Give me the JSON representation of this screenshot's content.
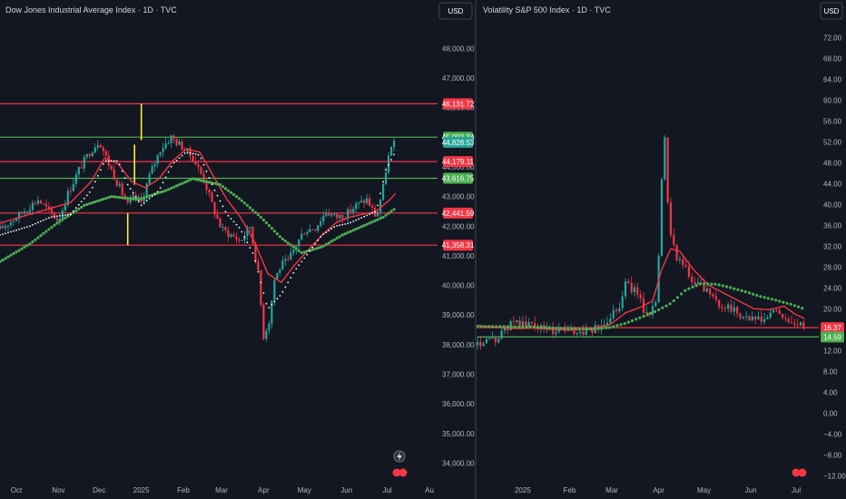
{
  "chart_data": [
    {
      "type": "candlestick",
      "title": "Dow Jones Industrial Average Index · 1D · TVC",
      "currency_button": "USD",
      "ylim": [
        33400,
        48900
      ],
      "yticks": [
        48000,
        47000,
        46000,
        45000,
        44000,
        43000,
        42000,
        41000,
        40000,
        39000,
        38000,
        37000,
        36000,
        35000,
        34000
      ],
      "ytick_labels": [
        "48,000.00",
        "47,000.00",
        "46,000.00",
        "45,000.00",
        "44,000.00",
        "43,000.00",
        "42,000.00",
        "41,000.00",
        "40,000.00",
        "39,000.00",
        "38,000.00",
        "37,000.00",
        "36,000.00",
        "35,000.00",
        "34,000.00"
      ],
      "xlabels": [
        "Oct",
        "Nov",
        "Dec",
        "2025",
        "Feb",
        "Mar",
        "Apr",
        "May",
        "Jun",
        "Jul",
        "Au"
      ],
      "xlabel_days": [
        0,
        31,
        61,
        92,
        123,
        151,
        182,
        212,
        243,
        273,
        304
      ],
      "day_range": [
        -12,
        310
      ],
      "levels": [
        {
          "label": "46,131.72",
          "value": 46131.72,
          "color": "#f23645"
        },
        {
          "label": "45,003.34",
          "value": 45003.34,
          "color": "#4caf50"
        },
        {
          "label": "44,179.11",
          "value": 44179.11,
          "color": "#f23645"
        },
        {
          "label": "43,616.75",
          "value": 43616.75,
          "color": "#4caf50"
        },
        {
          "label": "42,441.59",
          "value": 42441.59,
          "color": "#f23645"
        },
        {
          "label": "41,358.31",
          "value": 41358.31,
          "color": "#f23645"
        }
      ],
      "last_price": {
        "label": "44,828.53",
        "value": 44828.53,
        "color": "#26a69a"
      },
      "vertical_markers": [
        {
          "day": 92,
          "from": 44900,
          "to": 46131.72
        },
        {
          "day": 87,
          "from": 43400,
          "to": 44750
        },
        {
          "day": 82,
          "from": 41358.31,
          "to": 42441.59
        }
      ],
      "series": [
        {
          "name": "close",
          "kind": "candles",
          "days": [
            -12,
            0,
            8,
            16,
            24,
            31,
            38,
            46,
            54,
            61,
            68,
            75,
            82,
            87,
            92,
            98,
            106,
            114,
            123,
            130,
            138,
            145,
            151,
            158,
            165,
            172,
            178,
            182,
            186,
            190,
            195,
            200,
            205,
            212,
            220,
            228,
            235,
            243,
            250,
            258,
            265,
            270,
            273,
            276,
            279
          ],
          "values": [
            41900,
            42300,
            42600,
            42900,
            42500,
            42200,
            43100,
            43900,
            44500,
            44900,
            44100,
            43400,
            42700,
            43000,
            42800,
            43700,
            44600,
            45000,
            44650,
            44300,
            43600,
            42600,
            41900,
            41700,
            41500,
            42000,
            40400,
            38300,
            38800,
            40200,
            40700,
            40800,
            41300,
            41850,
            41950,
            42500,
            42300,
            42400,
            42700,
            42900,
            42300,
            43300,
            44200,
            44600,
            44828
          ]
        },
        {
          "name": "ema-short",
          "kind": "line",
          "color": "#f23645",
          "days": [
            -12,
            10,
            25,
            40,
            55,
            65,
            75,
            85,
            95,
            105,
            115,
            125,
            135,
            145,
            155,
            165,
            175,
            185,
            195,
            205,
            215,
            225,
            235,
            245,
            255,
            265,
            275,
            279
          ],
          "values": [
            42100,
            42400,
            42600,
            42800,
            43500,
            44300,
            44100,
            43500,
            43300,
            43600,
            44200,
            44600,
            44500,
            43700,
            42900,
            42300,
            41500,
            40400,
            40100,
            40700,
            41200,
            41700,
            42100,
            42300,
            42400,
            42500,
            42900,
            43100
          ]
        },
        {
          "name": "ma-long",
          "kind": "dots",
          "color": "#4caf50",
          "days": [
            -12,
            10,
            30,
            50,
            70,
            90,
            110,
            130,
            150,
            165,
            180,
            195,
            210,
            225,
            240,
            255,
            270,
            279
          ],
          "values": [
            40800,
            41400,
            42100,
            42700,
            43000,
            42900,
            43200,
            43600,
            43400,
            42900,
            42300,
            41600,
            41100,
            41300,
            41700,
            42000,
            42300,
            42600
          ]
        },
        {
          "name": "ma-short",
          "kind": "dots",
          "color": "#ffffff",
          "days": [
            -12,
            10,
            25,
            40,
            55,
            65,
            75,
            82,
            92,
            105,
            115,
            125,
            135,
            145,
            155,
            165,
            175,
            185,
            195,
            205,
            215,
            225,
            235,
            245,
            255,
            265,
            272,
            279
          ],
          "values": [
            41700,
            42000,
            42300,
            42400,
            43200,
            44200,
            44200,
            43400,
            42700,
            43200,
            44100,
            44500,
            44400,
            43300,
            42400,
            41900,
            41000,
            39200,
            39700,
            40500,
            41100,
            41700,
            42000,
            42100,
            42300,
            42500,
            43900,
            44500
          ]
        }
      ]
    },
    {
      "type": "candlestick",
      "title": "Volatility S&P 500 Index · 1D · TVC",
      "currency_button": "USD",
      "ylim": [
        -13,
        75
      ],
      "yticks": [
        72,
        68,
        64,
        60,
        56,
        52,
        48,
        44,
        40,
        36,
        32,
        28,
        24,
        20,
        16,
        12,
        8,
        4,
        0,
        -4,
        -8,
        -12
      ],
      "ytick_labels": [
        "72.00",
        "68.00",
        "64.00",
        "60.00",
        "56.00",
        "52.00",
        "48.00",
        "44.00",
        "40.00",
        "36.00",
        "32.00",
        "28.00",
        "24.00",
        "20.00",
        "16.00",
        "12.00",
        "8.00",
        "4.00",
        "0.00",
        "−4.00",
        "−8.00",
        "−12.00"
      ],
      "xlabels": [
        "2025",
        "Feb",
        "Mar",
        "Apr",
        "May",
        "Jun",
        "Jul"
      ],
      "xlabel_days": [
        92,
        123,
        151,
        182,
        212,
        243,
        273
      ],
      "day_range": [
        62,
        288
      ],
      "levels": [
        {
          "label": "16.37",
          "value": 16.37,
          "color": "#f23645"
        },
        {
          "label": "14.59",
          "value": 14.59,
          "color": "#4caf50"
        }
      ],
      "series": [
        {
          "name": "close",
          "kind": "candles",
          "days": [
            62,
            68,
            75,
            82,
            88,
            92,
            98,
            105,
            112,
            118,
            123,
            130,
            138,
            145,
            151,
            156,
            160,
            166,
            172,
            176,
            180,
            182,
            184,
            186,
            188,
            190,
            194,
            198,
            204,
            212,
            220,
            228,
            235,
            243,
            250,
            258,
            265,
            270,
            274,
            278
          ],
          "values": [
            13.0,
            13.5,
            14.2,
            16.5,
            18.0,
            16.8,
            17.0,
            16.2,
            15.8,
            16.1,
            15.5,
            15.6,
            15.9,
            16.4,
            19.5,
            20.5,
            25.0,
            23.5,
            20.0,
            19.0,
            22.0,
            30.0,
            45.0,
            52.0,
            40.0,
            35.0,
            30.0,
            28.5,
            25.0,
            24.0,
            21.0,
            20.5,
            19.0,
            18.0,
            17.5,
            19.5,
            18.5,
            17.0,
            16.8,
            16.4
          ]
        },
        {
          "name": "ema-short",
          "kind": "line",
          "color": "#f23645",
          "days": [
            62,
            75,
            88,
            100,
            112,
            125,
            138,
            150,
            160,
            170,
            178,
            184,
            190,
            196,
            205,
            215,
            225,
            235,
            245,
            255,
            265,
            272,
            278
          ],
          "values": [
            16.8,
            16.4,
            16.2,
            16.3,
            16.0,
            15.9,
            16.1,
            17.0,
            19.2,
            20.3,
            21.5,
            27.5,
            31.5,
            31.0,
            27.5,
            24.5,
            23.0,
            21.5,
            20.0,
            19.8,
            20.5,
            19.0,
            18.2
          ]
        },
        {
          "name": "ma-long",
          "kind": "dots",
          "color": "#4caf50",
          "days": [
            62,
            75,
            88,
            100,
            112,
            125,
            138,
            150,
            160,
            170,
            180,
            190,
            200,
            210,
            220,
            230,
            240,
            250,
            260,
            270,
            278
          ],
          "values": [
            16.6,
            16.6,
            16.5,
            16.5,
            16.3,
            16.2,
            16.1,
            16.4,
            17.2,
            18.3,
            19.5,
            21.0,
            23.6,
            24.8,
            24.7,
            24.0,
            23.2,
            22.3,
            21.6,
            20.8,
            20.0
          ]
        }
      ]
    }
  ]
}
